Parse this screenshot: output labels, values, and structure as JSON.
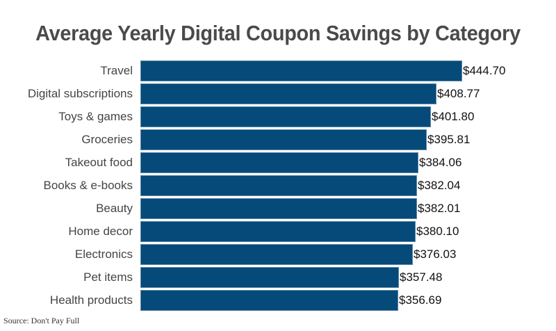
{
  "title": "Average Yearly Digital Coupon Savings by Category",
  "source": "Source: Don't Pay Full",
  "colors": {
    "bar": "#064a79",
    "title": "#4a4a4a",
    "label": "#444444"
  },
  "chart_data": {
    "type": "bar",
    "orientation": "horizontal",
    "title": "Average Yearly Digital Coupon Savings by Category",
    "xlabel": "",
    "ylabel": "",
    "categories": [
      "Travel",
      "Digital subscriptions",
      "Toys & games",
      "Groceries",
      "Takeout food",
      "Books & e-books",
      "Beauty",
      "Home decor",
      "Electronics",
      "Pet items",
      "Health products"
    ],
    "values": [
      444.7,
      408.77,
      401.8,
      395.81,
      384.06,
      382.04,
      382.01,
      380.1,
      376.03,
      357.48,
      356.69
    ],
    "value_labels": [
      "$444.70",
      "$408.77",
      "$401.80",
      "$395.81",
      "$384.06",
      "$382.04",
      "$382.01",
      "$380.10",
      "$376.03",
      "$357.48",
      "$356.69"
    ],
    "grid": false,
    "legend": null,
    "source": "Source: Don't Pay Full"
  }
}
